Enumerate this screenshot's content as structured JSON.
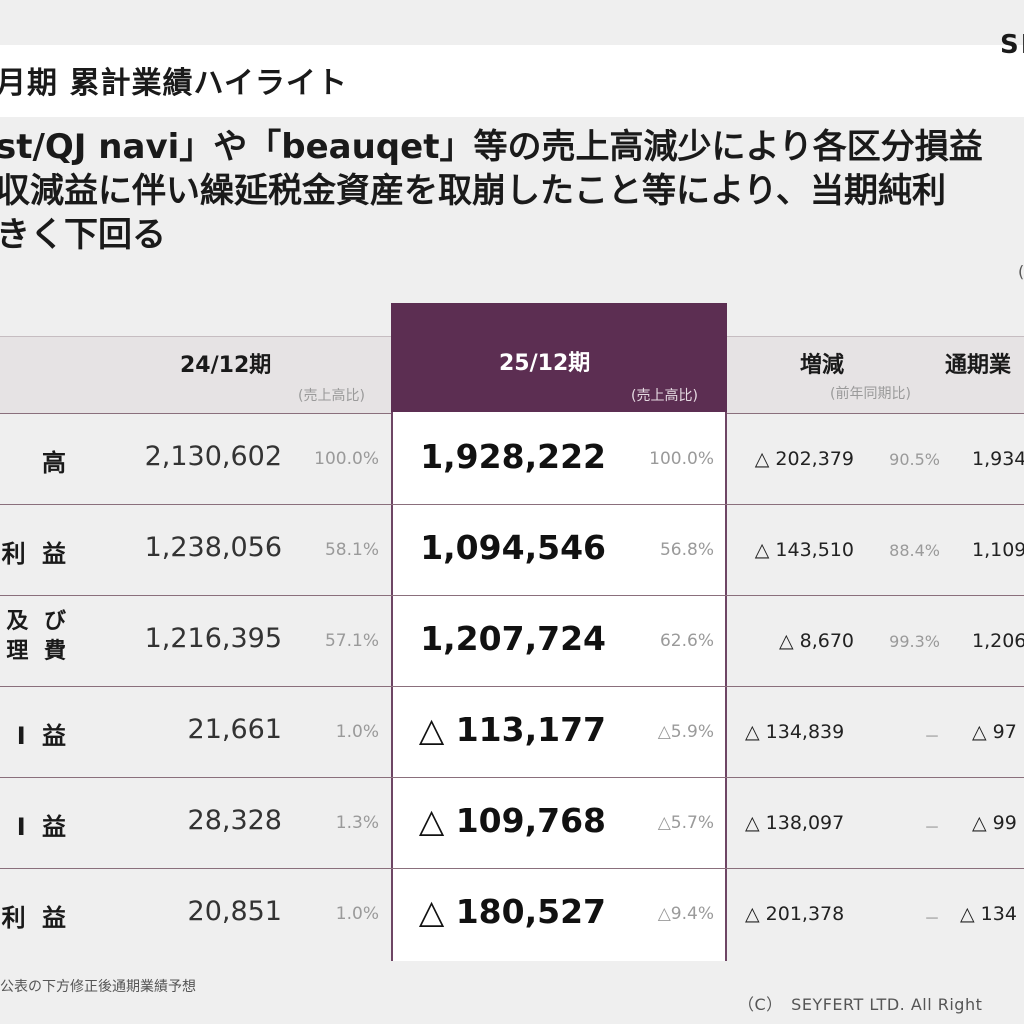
{
  "header": {
    "title": "月期 累計業績ハイライト",
    "logo": "SE"
  },
  "summary": {
    "line1": "st/QJ navi」や「beauqet」等の売上高減少により各区分損益",
    "line2": "収減益に伴い繰延税金資産を取崩したこと等により、当期純利",
    "line3": "きく下回る"
  },
  "unit_note": "(",
  "table": {
    "columns": {
      "prev": {
        "label": "24/12期",
        "sub": "(売上高比)"
      },
      "curr": {
        "label": "25/12期",
        "sub": "(売上高比)"
      },
      "change": {
        "label": "増減",
        "sub": "(前年同期比)"
      },
      "forecast": {
        "label": "通期業"
      }
    },
    "rows": [
      {
        "label": "高",
        "prev": "2,130,602",
        "prev_ratio": "100.0%",
        "curr": "1,928,222",
        "curr_ratio": "100.0%",
        "change": "△ 202,379",
        "change_ratio": "90.5%",
        "forecast": "1,934"
      },
      {
        "label": "利 益",
        "prev": "1,238,056",
        "prev_ratio": "58.1%",
        "curr": "1,094,546",
        "curr_ratio": "56.8%",
        "change": "△ 143,510",
        "change_ratio": "88.4%",
        "forecast": "1,109"
      },
      {
        "label": "及 び",
        "label2": "理 費",
        "prev": "1,216,395",
        "prev_ratio": "57.1%",
        "curr": "1,207,724",
        "curr_ratio": "62.6%",
        "change": "△ 8,670",
        "change_ratio": "99.3%",
        "forecast": "1,206"
      },
      {
        "label": "Ⅰ 益",
        "prev": "21,661",
        "prev_ratio": "1.0%",
        "curr": "△ 113,177",
        "curr_ratio": "△5.9%",
        "change": "△ 134,839",
        "change_ratio": "－",
        "forecast": "△ 97"
      },
      {
        "label": "Ⅰ 益",
        "prev": "28,328",
        "prev_ratio": "1.3%",
        "curr": "△ 109,768",
        "curr_ratio": "△5.7%",
        "change": "△ 138,097",
        "change_ratio": "－",
        "forecast": "△ 99"
      },
      {
        "label": "利 益",
        "prev": "20,851",
        "prev_ratio": "1.0%",
        "curr": "△ 180,527",
        "curr_ratio": "△9.4%",
        "change": "△ 201,378",
        "change_ratio": "－",
        "forecast": "△ 134"
      }
    ]
  },
  "footnote": "公表の下方修正後通期業績予想",
  "copyright": "（C）　SEYFERT LTD. All Right"
}
